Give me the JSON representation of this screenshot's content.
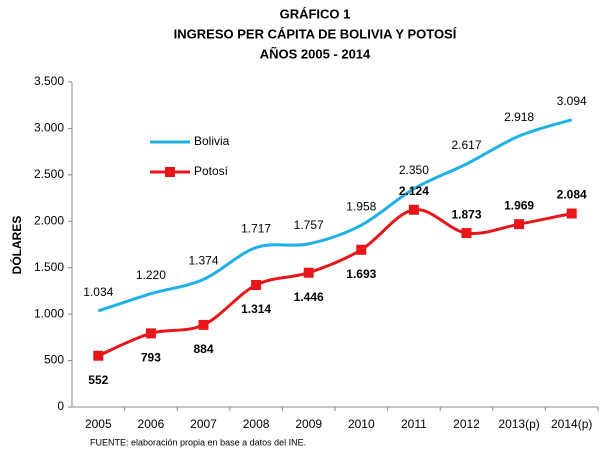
{
  "chart_data": {
    "type": "line",
    "title": "GRÁFICO 1",
    "subtitle": [
      "INGRESO PER CÁPITA DE BOLIVIA Y POTOSÍ",
      "AÑOS 2005 - 2014"
    ],
    "y_label": "DÓLARES",
    "source": "FUENTE: elaboración propia en base a datos del INE.",
    "categories": [
      "2005",
      "2006",
      "2007",
      "2008",
      "2009",
      "2010",
      "2011",
      "2012",
      "2013(p)",
      "2014(p)"
    ],
    "series": [
      {
        "name": "Bolivia",
        "color": "#1fb0e6",
        "marker": "none",
        "values": [
          1034,
          1220,
          1374,
          1717,
          1757,
          1958,
          2350,
          2617,
          2918,
          3094
        ],
        "value_labels": [
          "1.034",
          "1.220",
          "1.374",
          "1.717",
          "1.757",
          "1.958",
          "2.350",
          "2.617",
          "2.918",
          "3.094"
        ]
      },
      {
        "name": "Potosí",
        "color": "#e8161b",
        "marker": "square",
        "values": [
          552,
          793,
          884,
          1314,
          1446,
          1693,
          2124,
          1873,
          1969,
          2084
        ],
        "value_labels": [
          "552",
          "793",
          "884",
          "1.314",
          "1.446",
          "1.693",
          "2.124",
          "1.873",
          "1.969",
          "2.084"
        ]
      }
    ],
    "ylim": [
      0,
      3500
    ],
    "yticks": [
      0,
      500,
      {
        "value": 1000,
        "label": "1.000"
      },
      {
        "value": 1500,
        "label": "1.500"
      },
      {
        "value": 2000,
        "label": "2.000"
      },
      {
        "value": 2500,
        "label": "2.500"
      },
      {
        "value": 3000,
        "label": "3.000"
      },
      {
        "value": 3500,
        "label": "3.500"
      }
    ],
    "grid": false
  }
}
